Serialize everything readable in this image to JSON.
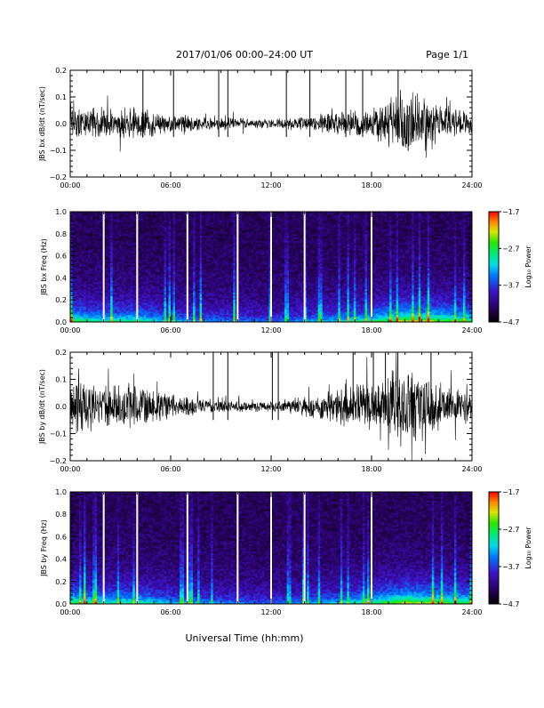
{
  "header": {
    "title": "2017/01/06  00:00–24:00 UT",
    "page": "Page 1/1"
  },
  "footer": {
    "xlabel": "Universal Time (hh:mm)"
  },
  "chart_data": [
    {
      "type": "line",
      "ylabel": "JBS bx dB/dt (nT/sec)",
      "xlim": [
        0,
        24
      ],
      "ylim": [
        -0.2,
        0.2
      ],
      "xticks": [
        "00:00",
        "06:00",
        "12:00",
        "18:00",
        "24:00"
      ],
      "yticks": [
        "0.2",
        "0.1",
        "0.0",
        "−0.1",
        "−0.2"
      ],
      "envelope": {
        "hours": [
          0,
          2,
          4,
          6,
          8,
          10,
          12,
          14,
          16,
          18,
          19,
          20,
          21,
          22,
          23,
          24
        ],
        "amplitude": [
          0.08,
          0.06,
          0.07,
          0.04,
          0.03,
          0.025,
          0.02,
          0.03,
          0.05,
          0.07,
          0.1,
          0.16,
          0.12,
          0.08,
          0.06,
          0.05
        ]
      }
    },
    {
      "type": "heatmap",
      "ylabel": "JBS bx Freq (Hz)",
      "xlim": [
        0,
        24
      ],
      "ylim": [
        0,
        1
      ],
      "xticks": [
        "00:00",
        "06:00",
        "12:00",
        "18:00",
        "24:00"
      ],
      "yticks": [
        "1.0",
        "0.8",
        "0.6",
        "0.4",
        "0.2",
        "0.0"
      ],
      "colorbar": {
        "label": "Log₁₀ Power",
        "ticks": [
          "−1.7",
          "−2.7",
          "−3.7",
          "−4.7"
        ],
        "range": [
          -4.7,
          -1.7
        ]
      },
      "gap_hours": [
        2.0,
        4.0,
        7.0,
        10.0,
        12.0,
        14.0,
        18.0
      ]
    },
    {
      "type": "line",
      "ylabel": "JBS by dB/dt (nT/sec)",
      "xlim": [
        0,
        24
      ],
      "ylim": [
        -0.2,
        0.2
      ],
      "xticks": [
        "00:00",
        "06:00",
        "12:00",
        "18:00",
        "24:00"
      ],
      "yticks": [
        "0.2",
        "0.1",
        "0.0",
        "−0.1",
        "−0.2"
      ],
      "envelope": {
        "hours": [
          0,
          2,
          4,
          6,
          8,
          10,
          12,
          14,
          16,
          18,
          19,
          20,
          21,
          22,
          23,
          24
        ],
        "amplitude": [
          0.12,
          0.09,
          0.1,
          0.05,
          0.03,
          0.025,
          0.02,
          0.04,
          0.07,
          0.1,
          0.13,
          0.18,
          0.14,
          0.1,
          0.08,
          0.06
        ]
      }
    },
    {
      "type": "heatmap",
      "ylabel": "JBS by Freq (Hz)",
      "xlim": [
        0,
        24
      ],
      "ylim": [
        0,
        1
      ],
      "xticks": [
        "00:00",
        "06:00",
        "12:00",
        "18:00",
        "24:00"
      ],
      "yticks": [
        "1.0",
        "0.8",
        "0.6",
        "0.4",
        "0.2",
        "0.0"
      ],
      "colorbar": {
        "label": "Log₁₀ Power",
        "ticks": [
          "−1.7",
          "−2.7",
          "−3.7",
          "−4.7"
        ],
        "range": [
          -4.7,
          -1.7
        ]
      },
      "gap_hours": [
        2.0,
        4.0,
        7.0,
        10.0,
        12.0,
        14.0,
        18.0
      ]
    }
  ]
}
